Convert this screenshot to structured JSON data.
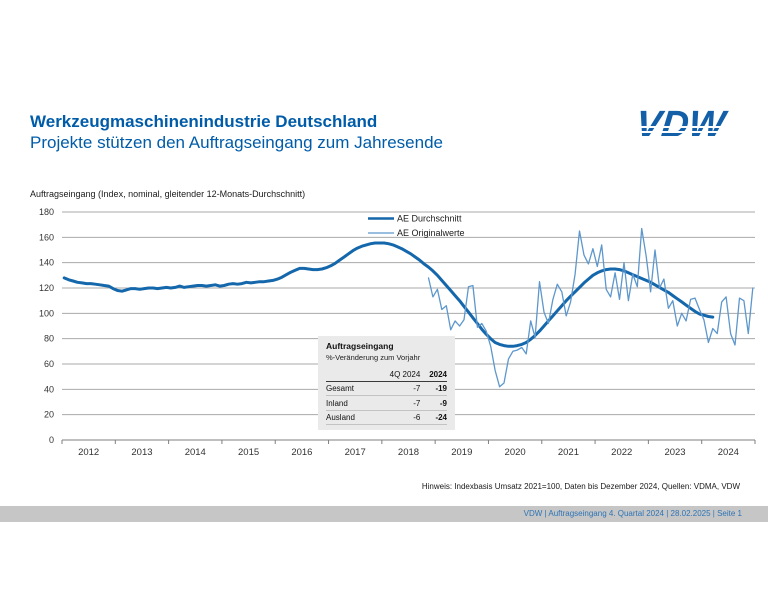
{
  "page": {
    "title": "Werkzeugmaschinenindustrie Deutschland",
    "subtitle": "Projekte stützen den Auftragseingang zum Jahresende",
    "logo_text": "VDW"
  },
  "chart_label": "Auftragseingang (Index, nominal, gleitender 12-Monats-Durchschnitt)",
  "chart_data": {
    "type": "line",
    "title": "Auftragseingang (Index, nominal, gleitender 12-Monats-Durchschnitt)",
    "x_start_year": 2012,
    "x_end_year": 2025,
    "year_labels": [
      2012,
      2013,
      2014,
      2015,
      2016,
      2017,
      2018,
      2019,
      2020,
      2021,
      2022,
      2023,
      2024
    ],
    "ylim": [
      0,
      180
    ],
    "ytick_step": 20,
    "grid": true,
    "legend_position": "top-center",
    "series": [
      {
        "name": "AE Durchschnitt",
        "color": "#1467AB",
        "width": 3,
        "start_month_index": 0,
        "values": [
          128,
          126.5,
          125.5,
          124.5,
          124,
          123.5,
          123.5,
          123,
          122.5,
          122,
          121.5,
          119.5,
          118,
          117.5,
          118.5,
          119.5,
          119.5,
          119,
          119.5,
          120,
          120,
          119.5,
          120,
          120.5,
          120,
          120.5,
          121.5,
          120.5,
          121,
          121.5,
          122,
          122,
          121.5,
          122,
          122.5,
          121.5,
          122,
          123,
          123.5,
          123,
          123.5,
          124.5,
          124,
          124.5,
          125,
          125,
          125.5,
          126,
          127,
          128.5,
          130.5,
          132.5,
          134,
          135.5,
          135.5,
          135,
          134.5,
          134.5,
          135,
          136,
          137.5,
          139.5,
          142,
          144.5,
          147,
          149.5,
          151.5,
          153,
          154,
          155,
          155.5,
          155.5,
          155.5,
          155,
          154,
          152.5,
          151,
          149,
          147,
          144.5,
          142,
          139,
          136.5,
          133.5,
          130,
          126,
          122,
          118,
          114,
          110,
          105.5,
          101,
          96.5,
          92,
          87.5,
          83.5,
          80,
          77,
          75.5,
          74.5,
          74,
          74,
          74.5,
          75.5,
          77,
          79.5,
          82.5,
          86,
          90,
          94,
          98,
          102,
          106,
          110,
          113.5,
          117,
          120.5,
          124,
          127,
          130,
          132,
          133.5,
          134.5,
          135,
          135,
          134.5,
          133.5,
          132,
          130.5,
          129,
          127.5,
          126,
          124.5,
          122.5,
          120.5,
          118.5,
          116.5,
          114,
          111.5,
          109,
          106.5,
          104,
          101.5,
          99.5,
          98.5,
          97.5,
          97
        ]
      },
      {
        "name": "AE Originalwerte",
        "color": "#5D97CC",
        "width": 1.3,
        "start_month_index": 82,
        "values": [
          128,
          113,
          119,
          103,
          106,
          87,
          94,
          90,
          95,
          121,
          122,
          89,
          92,
          86,
          74,
          55,
          42,
          45,
          64,
          70,
          71,
          73,
          68,
          94,
          81,
          125,
          101,
          92,
          111,
          123,
          117,
          98,
          109,
          131,
          165,
          146,
          139,
          151,
          137,
          154,
          119,
          113,
          132,
          111,
          140,
          110,
          131,
          121,
          167,
          145,
          117,
          150,
          120,
          127,
          104,
          110,
          90,
          100,
          94,
          111,
          112,
          103,
          95,
          77,
          88,
          84,
          109,
          113,
          84,
          75,
          112,
          110,
          84,
          120
        ]
      }
    ]
  },
  "table": {
    "title": "Auftragseingang",
    "subtitle": "%-Veränderung zum Vorjahr",
    "col_headers": [
      "4Q 2024",
      "2024"
    ],
    "rows": [
      {
        "name": "Gesamt",
        "q4": "-7",
        "total": "-19"
      },
      {
        "name": "Inland",
        "q4": "-7",
        "total": "-9"
      },
      {
        "name": "Ausland",
        "q4": "-6",
        "total": "-24"
      }
    ]
  },
  "footnote": "Hinweis: Indexbasis Umsatz 2021=100, Daten bis Dezember 2024, Quellen: VDMA, VDW",
  "footer": {
    "text": "VDW | Auftragseingang 4. Quartal 2024 |  28.02.2025  |  Seite 1"
  },
  "colors": {
    "heading": "#005CA9",
    "logo": "#1460A8",
    "avg_line": "#1467AB",
    "orig_line": "#5D97CC",
    "grid": "#A9A9A9",
    "axis": "#7F7F7F",
    "footer_bar": "#C6C6C6",
    "footer_text": "#2E74B5",
    "table_bg": "#EAEAEA"
  }
}
